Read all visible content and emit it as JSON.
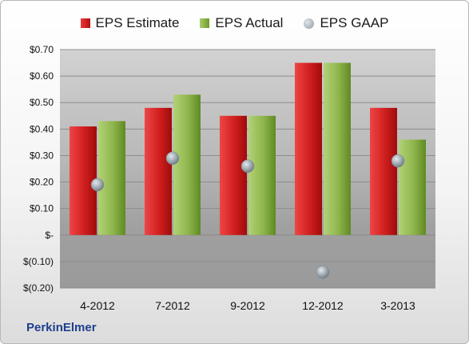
{
  "company": "PerkinElmer",
  "chart_data": {
    "type": "bar",
    "categories": [
      "4-2012",
      "7-2012",
      "9-2012",
      "12-2012",
      "3-2013"
    ],
    "series": [
      {
        "name": "EPS Estimate",
        "values": [
          0.41,
          0.48,
          0.45,
          0.65,
          0.48
        ],
        "color": "#c0181b"
      },
      {
        "name": "EPS Actual",
        "values": [
          0.43,
          0.53,
          0.45,
          0.65,
          0.36
        ],
        "color": "#86ad3f"
      },
      {
        "name": "EPS GAAP",
        "values": [
          0.19,
          0.29,
          0.26,
          -0.14,
          0.28
        ],
        "color": "#98a4ad",
        "marker": "circle"
      }
    ],
    "ylim": [
      -0.2,
      0.7
    ],
    "yticks": [
      0.7,
      0.6,
      0.5,
      0.4,
      0.3,
      0.2,
      0.1,
      0,
      -0.1,
      -0.2
    ],
    "ytick_labels": [
      "$0.70",
      "$0.60",
      "$0.50",
      "$0.40",
      "$0.30",
      "$0.20",
      "$0.10",
      "$-",
      "$(0.10)",
      "$(0.20)"
    ],
    "grid": true,
    "legend": "top"
  }
}
